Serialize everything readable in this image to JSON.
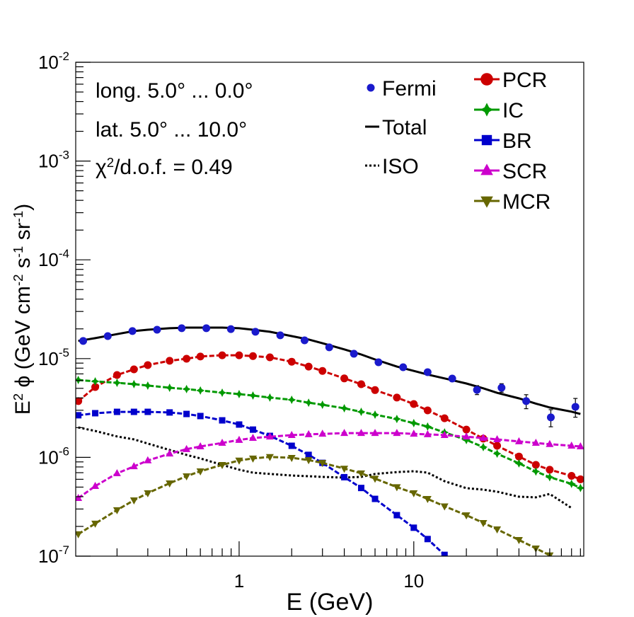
{
  "chart_data": {
    "type": "line",
    "xlog": true,
    "ylog": true,
    "xlim": [
      0.116,
      94
    ],
    "ylim": [
      1e-07,
      0.01
    ],
    "xticks": [
      1,
      10
    ],
    "xminorticks": [
      0.2,
      0.3,
      0.4,
      0.5,
      0.6,
      0.7,
      0.8,
      0.9,
      2,
      3,
      4,
      5,
      6,
      7,
      8,
      9,
      20,
      30,
      40,
      50,
      60,
      70,
      80,
      90
    ],
    "yticks": [
      {
        "value": 1e-07,
        "label": "10",
        "exponent": "-7"
      },
      {
        "value": 1e-06,
        "label": "10",
        "exponent": "-6"
      },
      {
        "value": 1e-05,
        "label": "10",
        "exponent": "-5"
      },
      {
        "value": 0.0001,
        "label": "10",
        "exponent": "-4"
      },
      {
        "value": 0.001,
        "label": "10",
        "exponent": "-3"
      },
      {
        "value": 0.01,
        "label": "10",
        "exponent": "-2"
      }
    ],
    "yminorticks": [
      2e-07,
      3e-07,
      4e-07,
      5e-07,
      6e-07,
      7e-07,
      8e-07,
      9e-07,
      2e-06,
      3e-06,
      4e-06,
      5e-06,
      6e-06,
      7e-06,
      8e-06,
      9e-06,
      2e-05,
      3e-05,
      4e-05,
      5e-05,
      6e-05,
      7e-05,
      8e-05,
      9e-05,
      0.0002,
      0.0003,
      0.0004,
      0.0005,
      0.0006,
      0.0007,
      0.0008,
      0.0009,
      0.002,
      0.003,
      0.004,
      0.005,
      0.006,
      0.007,
      0.008,
      0.009
    ],
    "xlabel": "E (GeV)",
    "ylabel": [
      {
        "text": "E"
      },
      {
        "text": "2",
        "sup": true
      },
      {
        "text": " ϕ (GeV cm"
      },
      {
        "text": "-2",
        "sup": true
      },
      {
        "text": " s"
      },
      {
        "text": "-1",
        "sup": true
      },
      {
        "text": " sr"
      },
      {
        "text": "-1",
        "sup": true
      },
      {
        "text": ")"
      }
    ],
    "annotations": [
      "long. 5.0° ... 0.0°",
      "lat. 5.0° ... 10.0°"
    ],
    "chi2": [
      {
        "text": "χ"
      },
      {
        "text": "2",
        "sup": true
      },
      {
        "text": "/d.o.f. = 0.49"
      }
    ],
    "x": [
      0.12,
      0.15,
      0.2,
      0.25,
      0.3,
      0.4,
      0.5,
      0.6,
      0.8,
      1,
      1.2,
      1.5,
      2,
      2.5,
      3,
      4,
      5,
      6,
      8,
      10,
      12,
      15,
      20,
      25,
      30,
      40,
      50,
      60,
      80,
      90
    ],
    "series": [
      {
        "name": "Total",
        "color": "#000000",
        "style": "solid",
        "marker": null,
        "values": [
          1.51e-05,
          1.61e-05,
          1.77e-05,
          1.9e-05,
          1.96e-05,
          2.03e-05,
          2.06e-05,
          2.06e-05,
          2.06e-05,
          2.03e-05,
          1.96e-05,
          1.87e-05,
          1.69e-05,
          1.56e-05,
          1.43e-05,
          1.24e-05,
          1.1e-05,
          9.8e-06,
          8.3e-06,
          7.5e-06,
          6.9e-06,
          6.3e-06,
          5.6e-06,
          5e-06,
          4.5e-06,
          3.96e-06,
          3.5e-06,
          3.2e-06,
          2.9e-06,
          2.75e-06
        ]
      },
      {
        "name": "ISO",
        "color": "#000000",
        "style": "dotted",
        "marker": null,
        "values": [
          2.01e-06,
          1.85e-06,
          1.63e-06,
          1.52e-06,
          1.38e-06,
          1.19e-06,
          1.06e-06,
          9.75e-07,
          8.4e-07,
          7.5e-07,
          7e-07,
          6.8e-07,
          6.56e-07,
          6.45e-07,
          6.34e-07,
          6.24e-07,
          6.34e-07,
          6.8e-07,
          7.1e-07,
          7.24e-07,
          7e-07,
          5.74e-07,
          4.88e-07,
          4.71e-07,
          4.49e-07,
          4e-07,
          3.94e-07,
          4.26e-07,
          3.07e-07,
          null
        ]
      },
      {
        "name": "PCR",
        "color": "#cc0000",
        "style": "dashed",
        "marker": "circle",
        "values": [
          3.71e-06,
          5.15e-06,
          6.82e-06,
          7.78e-06,
          8.6e-06,
          9.5e-06,
          9.97e-06,
          1.05e-05,
          1.08e-05,
          1.08e-05,
          1.06e-05,
          1.03e-05,
          9.3e-06,
          8.3e-06,
          7.5e-06,
          6.3e-06,
          5.5e-06,
          4.8e-06,
          4.03e-06,
          3.47e-06,
          2.99e-06,
          2.49e-06,
          1.91e-06,
          1.55e-06,
          1.31e-06,
          1.02e-06,
          8.4e-07,
          7.5e-07,
          6.5e-07,
          6e-07
        ]
      },
      {
        "name": "IC",
        "color": "#009900",
        "style": "dashed",
        "marker": "diamond",
        "values": [
          6.08e-06,
          5.88e-06,
          5.69e-06,
          5.51e-06,
          5.33e-06,
          5.07e-06,
          4.91e-06,
          4.75e-06,
          4.52e-06,
          4.37e-06,
          4.23e-06,
          4.03e-06,
          3.83e-06,
          3.58e-06,
          3.41e-06,
          3.14e-06,
          2.89e-06,
          2.71e-06,
          2.45e-06,
          2.22e-06,
          2.05e-06,
          1.79e-06,
          1.5e-06,
          1.27e-06,
          1.09e-06,
          8.7e-07,
          7.2e-07,
          6.3e-07,
          5.4e-07,
          4.9e-07
        ]
      },
      {
        "name": "BR",
        "color": "#0000cc",
        "style": "dashed",
        "marker": "square",
        "values": [
          2.67e-06,
          2.8e-06,
          2.89e-06,
          2.89e-06,
          2.89e-06,
          2.85e-06,
          2.75e-06,
          2.62e-06,
          2.37e-06,
          2.15e-06,
          1.91e-06,
          1.65e-06,
          1.31e-06,
          1.06e-06,
          8.8e-07,
          6.3e-07,
          4.9e-07,
          3.8e-07,
          2.6e-07,
          1.94e-07,
          1.49e-07,
          1.03e-07,
          null,
          null,
          null,
          null,
          null,
          null,
          null,
          null
        ]
      },
      {
        "name": "SCR",
        "color": "#cc00cc",
        "style": "dashed",
        "marker": "triangle-up",
        "values": [
          3.87e-07,
          5.12e-07,
          6.89e-07,
          8.1e-07,
          9.3e-07,
          1.09e-06,
          1.21e-06,
          1.29e-06,
          1.4e-06,
          1.5e-06,
          1.57e-06,
          1.62e-06,
          1.68e-06,
          1.71e-06,
          1.73e-06,
          1.76e-06,
          1.76e-06,
          1.76e-06,
          1.76e-06,
          1.73e-06,
          1.71e-06,
          1.68e-06,
          1.62e-06,
          1.57e-06,
          1.52e-06,
          1.45e-06,
          1.4e-06,
          1.36e-06,
          1.31e-06,
          1.29e-06
        ]
      },
      {
        "name": "MCR",
        "color": "#666600",
        "style": "dashed",
        "marker": "triangle-down",
        "values": [
          1.67e-07,
          2.14e-07,
          2.93e-07,
          3.68e-07,
          4.35e-07,
          5.47e-07,
          6.45e-07,
          7.24e-07,
          8.4e-07,
          9.3e-07,
          9.75e-07,
          1.01e-06,
          9.9e-07,
          9.4e-07,
          8.8e-07,
          7.7e-07,
          6.9e-07,
          6.1e-07,
          5e-07,
          4.35e-07,
          3.8e-07,
          3.2e-07,
          2.6e-07,
          2.17e-07,
          1.87e-07,
          1.46e-07,
          1.2e-07,
          1.02e-07,
          null,
          null
        ]
      }
    ],
    "points": {
      "name": "Fermi",
      "color": "#1a1acc",
      "marker": "circle",
      "x": [
        0.128,
        0.177,
        0.245,
        0.339,
        0.469,
        0.649,
        0.897,
        1.24,
        1.72,
        2.37,
        3.28,
        4.54,
        6.28,
        8.69,
        12.0,
        16.6,
        23.0,
        31.8,
        44.0,
        60.9,
        84.2
      ],
      "values": [
        1.51e-05,
        1.69e-05,
        1.9e-05,
        1.96e-05,
        2.03e-05,
        2.03e-05,
        1.99e-05,
        1.87e-05,
        1.72e-05,
        1.53e-05,
        1.3e-05,
        1.12e-05,
        9.18e-06,
        8.18e-06,
        7.28e-06,
        6.28e-06,
        4.82e-06,
        5.07e-06,
        3.71e-06,
        2.54e-06,
        3.25e-06
      ],
      "errors": [
        3e-07,
        3e-07,
        3e-07,
        3e-07,
        3e-07,
        3e-07,
        3e-07,
        3e-07,
        3e-07,
        3e-07,
        2.5e-07,
        2.5e-07,
        2e-07,
        2e-07,
        2.5e-07,
        3e-07,
        5e-07,
        5e-07,
        6e-07,
        5e-07,
        7e-07
      ]
    }
  }
}
